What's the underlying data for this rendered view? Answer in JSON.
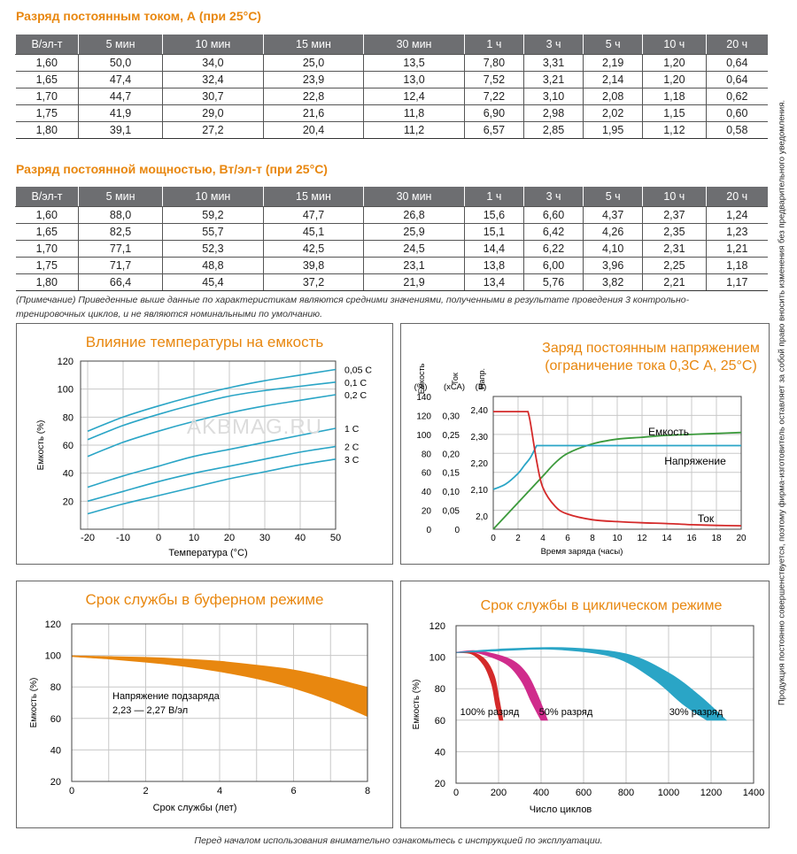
{
  "current_table": {
    "title": "Разряд постоянным током, А (при 25°С)",
    "headers": [
      "В/эл-т",
      "5 мин",
      "10 мин",
      "15 мин",
      "30 мин",
      "1 ч",
      "3 ч",
      "5 ч",
      "10 ч",
      "20 ч"
    ],
    "rows": [
      [
        "1,60",
        "50,0",
        "34,0",
        "25,0",
        "13,5",
        "7,80",
        "3,31",
        "2,19",
        "1,20",
        "0,64"
      ],
      [
        "1,65",
        "47,4",
        "32,4",
        "23,9",
        "13,0",
        "7,52",
        "3,21",
        "2,14",
        "1,20",
        "0,64"
      ],
      [
        "1,70",
        "44,7",
        "30,7",
        "22,8",
        "12,4",
        "7,22",
        "3,10",
        "2,08",
        "1,18",
        "0,62"
      ],
      [
        "1,75",
        "41,9",
        "29,0",
        "21,6",
        "11,8",
        "6,90",
        "2,98",
        "2,02",
        "1,15",
        "0,60"
      ],
      [
        "1,80",
        "39,1",
        "27,2",
        "20,4",
        "11,2",
        "6,57",
        "2,85",
        "1,95",
        "1,12",
        "0,58"
      ]
    ]
  },
  "power_table": {
    "title": "Разряд постоянной мощностью, Вт/эл-т (при 25°С)",
    "headers": [
      "В/эл-т",
      "5 мин",
      "10 мин",
      "15 мин",
      "30 мин",
      "1 ч",
      "3 ч",
      "5 ч",
      "10 ч",
      "20 ч"
    ],
    "rows": [
      [
        "1,60",
        "88,0",
        "59,2",
        "47,7",
        "26,8",
        "15,6",
        "6,60",
        "4,37",
        "2,37",
        "1,24"
      ],
      [
        "1,65",
        "82,5",
        "55,7",
        "45,1",
        "25,9",
        "15,1",
        "6,42",
        "4,26",
        "2,35",
        "1,23"
      ],
      [
        "1,70",
        "77,1",
        "52,3",
        "42,5",
        "24,5",
        "14,4",
        "6,22",
        "4,10",
        "2,31",
        "1,21"
      ],
      [
        "1,75",
        "71,7",
        "48,8",
        "39,8",
        "23,1",
        "13,8",
        "6,00",
        "3,96",
        "2,25",
        "1,18"
      ],
      [
        "1,80",
        "66,4",
        "45,4",
        "37,2",
        "21,9",
        "13,4",
        "5,76",
        "3,82",
        "2,21",
        "1,17"
      ]
    ]
  },
  "note": {
    "line1": "(Примечание) Приведенные выше данные по характеристикам являются средними значениями, полученными в результате проведения 3 контрольно-",
    "line2": "тренировочных циклов, и не являются номинальными по умолчанию."
  },
  "side_text": "Продукция постоянно совершенствуется, поэтому фирма-изготовитель оставляет за собой право вносить изменения без предварительного уведомления.",
  "footer_text": "Перед началом использования внимательно ознакомьтесь с инструкцией по эксплуатации.",
  "watermark": "AKBMAG.RU",
  "colors": {
    "orange": "#e8870f",
    "cyan": "#2aa5c6",
    "green": "#3c9a3c",
    "red": "#d42a2a",
    "magenta": "#d02c8c",
    "header_gray": "#6d6e71"
  },
  "chart_data": [
    {
      "type": "line",
      "title": "Влияние температуры на емкость",
      "xlabel": "Температура (°С)",
      "ylabel": "Емкость (%)",
      "xticks": [
        "-20",
        "-10",
        "0",
        "10",
        "20",
        "30",
        "40",
        "50"
      ],
      "yticks": [
        "20",
        "40",
        "60",
        "80",
        "100",
        "120"
      ],
      "xlim": [
        -22,
        50
      ],
      "ylim": [
        0,
        120
      ],
      "x": [
        -20,
        -10,
        0,
        10,
        20,
        30,
        40,
        50
      ],
      "series": [
        {
          "name": "0,05 С",
          "values": [
            70,
            80,
            88,
            95,
            101,
            106,
            110,
            114
          ]
        },
        {
          "name": "0,1 С",
          "values": [
            64,
            74,
            82,
            89,
            95,
            99,
            102,
            105
          ]
        },
        {
          "name": "0,2 С",
          "values": [
            52,
            62,
            70,
            77,
            83,
            88,
            92,
            96
          ]
        },
        {
          "name": "1 С",
          "values": [
            30,
            38,
            45,
            52,
            57,
            62,
            67,
            72
          ]
        },
        {
          "name": "2 С",
          "values": [
            20,
            27,
            34,
            40,
            45,
            50,
            55,
            59
          ]
        },
        {
          "name": "3 С",
          "values": [
            11,
            18,
            24,
            30,
            36,
            41,
            46,
            50
          ]
        }
      ]
    },
    {
      "type": "line",
      "title": "Заряд постоянным напряжением",
      "subtitle": "(ограничение тока 0,3С А, 25°С)",
      "xlabel": "Время заряда (часы)",
      "axis_titles": [
        "Емкость",
        "Ток",
        "Напр."
      ],
      "axis_units": [
        "(%)",
        "(хСА)",
        "(В)"
      ],
      "xticks": [
        "0",
        "2",
        "4",
        "6",
        "8",
        "10",
        "12",
        "14",
        "16",
        "18",
        "20"
      ],
      "xlim": [
        0,
        20
      ],
      "y_capacity_ticks": [
        "0",
        "20",
        "40",
        "60",
        "80",
        "100",
        "120",
        "140"
      ],
      "y_current_ticks": [
        "0",
        "0,05",
        "0,10",
        "0,15",
        "0,20",
        "0,25",
        "0,30"
      ],
      "y_voltage_ticks": [
        "2,0",
        "2,10",
        "2,20",
        "2,30",
        "2,40"
      ],
      "series": [
        {
          "name": "Емкость",
          "axis": "capacity",
          "x": [
            0,
            1,
            2,
            3,
            4,
            5,
            6,
            8,
            10,
            12,
            14,
            16,
            18,
            20
          ],
          "values": [
            0,
            14,
            28,
            42,
            56,
            70,
            80,
            90,
            95,
            97,
            99,
            100,
            101,
            102
          ]
        },
        {
          "name": "Напряжение",
          "axis": "voltage",
          "x": [
            0,
            1,
            2,
            2.5,
            3,
            3.5,
            20
          ],
          "values": [
            2.1,
            2.12,
            2.16,
            2.19,
            2.22,
            2.265,
            2.265
          ]
        },
        {
          "name": "Ток",
          "axis": "current",
          "x": [
            0,
            2.8,
            3,
            3.5,
            4,
            5,
            6,
            8,
            10,
            12,
            14,
            16,
            18,
            20
          ],
          "values": [
            0.31,
            0.31,
            0.28,
            0.18,
            0.11,
            0.06,
            0.04,
            0.025,
            0.02,
            0.017,
            0.015,
            0.012,
            0.01,
            0.009
          ]
        }
      ]
    },
    {
      "type": "area",
      "title": "Срок службы в буферном режиме",
      "xlabel": "Срок службы (лет)",
      "ylabel": "Емкость (%)",
      "xticks": [
        "0",
        "2",
        "4",
        "6",
        "8"
      ],
      "yticks": [
        "20",
        "40",
        "60",
        "80",
        "100",
        "120"
      ],
      "xlim": [
        0,
        8
      ],
      "ylim": [
        20,
        120
      ],
      "annotation_line1": "Напряжение подзаряда",
      "annotation_line2": "2,23 — 2,27 В/эл",
      "x": [
        0,
        1,
        2,
        3,
        4,
        5,
        6,
        7,
        8
      ],
      "upper": [
        100,
        99.5,
        99,
        98,
        96.5,
        94,
        91,
        86,
        80
      ],
      "lower": [
        99,
        97.5,
        95.5,
        93,
        89.5,
        85,
        79,
        71,
        61
      ]
    },
    {
      "type": "area",
      "title": "Срок службы в циклическом режиме",
      "xlabel": "Число циклов",
      "ylabel": "Емкость (%)",
      "xticks": [
        "0",
        "200",
        "400",
        "600",
        "800",
        "1000",
        "1200",
        "1400"
      ],
      "yticks": [
        "20",
        "40",
        "60",
        "80",
        "100",
        "120"
      ],
      "xlim": [
        0,
        1400
      ],
      "ylim": [
        20,
        120
      ],
      "series": [
        {
          "name": "100% разряд",
          "x": [
            0,
            80,
            140,
            180,
            200,
            220
          ],
          "upper": [
            103,
            103,
            98,
            88,
            75,
            60
          ],
          "lower": [
            103,
            102,
            95,
            83,
            70,
            60
          ]
        },
        {
          "name": "50% разряд",
          "x": [
            0,
            100,
            250,
            330,
            380,
            430
          ],
          "upper": [
            103,
            104,
            99,
            90,
            77,
            60
          ],
          "lower": [
            103,
            103,
            96,
            85,
            72,
            60
          ]
        },
        {
          "name": "30% разряд",
          "x": [
            0,
            200,
            500,
            800,
            1000,
            1150,
            1270
          ],
          "upper": [
            103,
            105,
            106,
            102,
            90,
            75,
            60
          ],
          "lower": [
            103,
            104,
            105,
            100,
            86,
            70,
            60
          ]
        }
      ]
    }
  ]
}
